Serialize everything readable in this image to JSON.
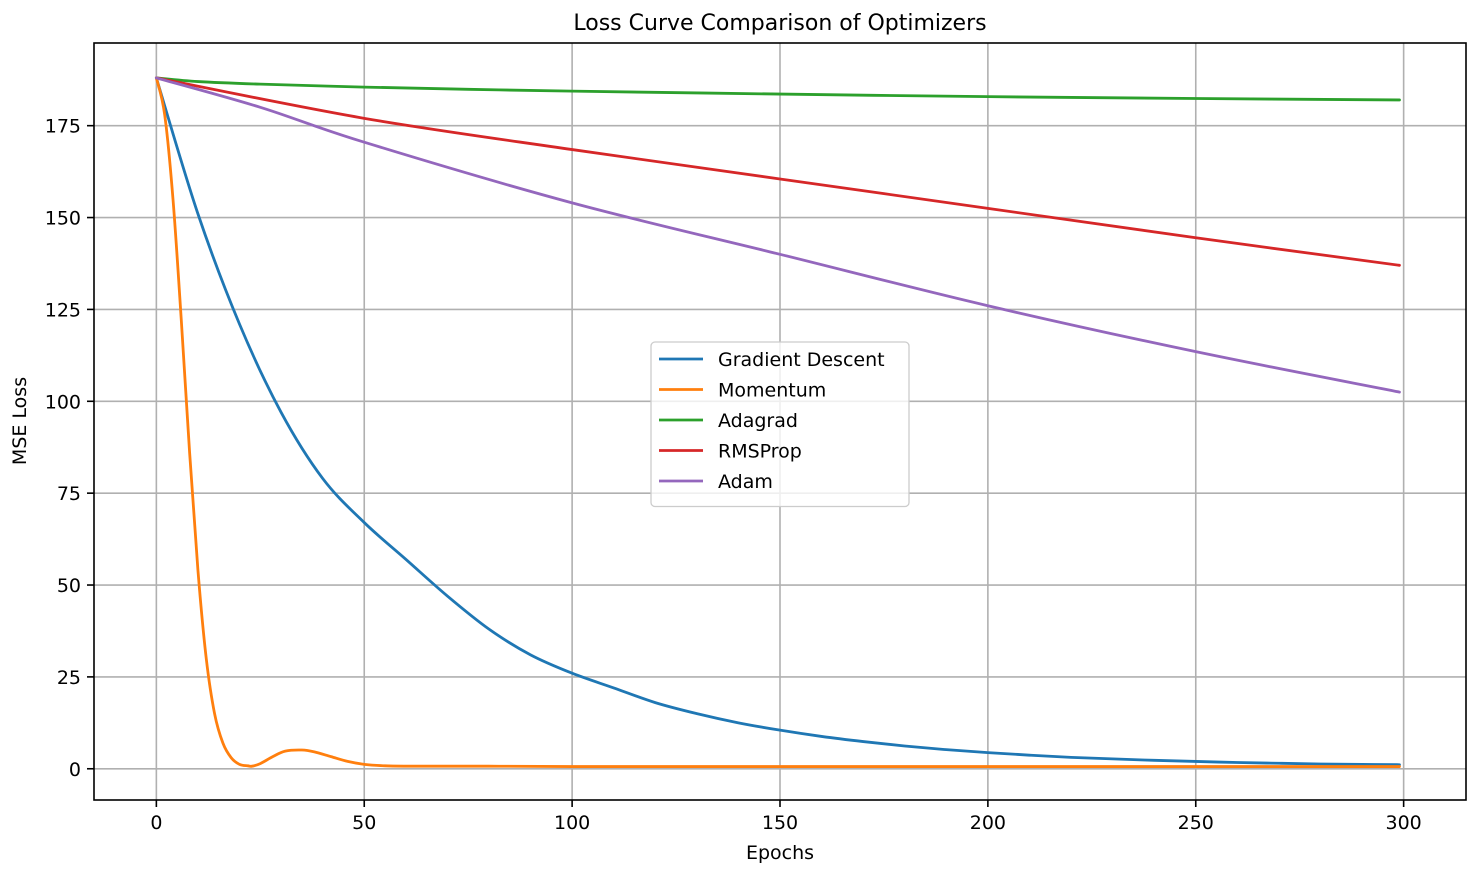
{
  "chart_data": {
    "type": "line",
    "title": "Loss Curve Comparison of Optimizers",
    "xlabel": "Epochs",
    "ylabel": "MSE Loss",
    "xlim": [
      -15,
      315
    ],
    "ylim": [
      -8.5,
      197.5
    ],
    "xticks": [
      0,
      50,
      100,
      150,
      200,
      250,
      300
    ],
    "yticks": [
      0,
      25,
      50,
      75,
      100,
      125,
      150,
      175
    ],
    "grid": true,
    "legend_position": "center",
    "series": [
      {
        "name": "Gradient Descent",
        "color": "#1f77b4",
        "x": [
          0,
          10,
          20,
          30,
          40,
          50,
          60,
          70,
          80,
          90,
          100,
          110,
          120,
          130,
          140,
          150,
          160,
          170,
          180,
          190,
          200,
          210,
          220,
          230,
          240,
          250,
          260,
          270,
          280,
          290,
          299
        ],
        "y": [
          188,
          151,
          121,
          97,
          79,
          67,
          57,
          47,
          38,
          31,
          26,
          22,
          18,
          15,
          12.5,
          10.5,
          8.8,
          7.4,
          6.2,
          5.2,
          4.4,
          3.7,
          3.1,
          2.7,
          2.3,
          2.0,
          1.7,
          1.5,
          1.3,
          1.2,
          1.1
        ]
      },
      {
        "name": "Momentum",
        "color": "#ff7f0e",
        "x": [
          0,
          2,
          4,
          6,
          8,
          10,
          12,
          14,
          16,
          18,
          20,
          22,
          23,
          25,
          28,
          31,
          35,
          38,
          42,
          46,
          50,
          55,
          60,
          70,
          80,
          100,
          150,
          200,
          250,
          299
        ],
        "y": [
          188,
          178,
          155,
          122,
          86,
          54,
          30,
          15,
          7,
          3,
          1.2,
          0.8,
          0.7,
          1.4,
          3.3,
          4.8,
          5.1,
          4.6,
          3.3,
          2.0,
          1.2,
          0.8,
          0.7,
          0.7,
          0.7,
          0.6,
          0.6,
          0.6,
          0.6,
          0.6
        ]
      },
      {
        "name": "Adagrad",
        "color": "#2ca02c",
        "x": [
          0,
          10,
          25,
          50,
          75,
          100,
          150,
          200,
          250,
          299
        ],
        "y": [
          188,
          187,
          186.3,
          185.5,
          184.9,
          184.4,
          183.6,
          182.9,
          182.4,
          182
        ]
      },
      {
        "name": "RMSProp",
        "color": "#d62728",
        "x": [
          0,
          50,
          100,
          150,
          200,
          250,
          299
        ],
        "y": [
          188,
          177,
          168.5,
          160.5,
          152.5,
          144.5,
          137
        ]
      },
      {
        "name": "Adam",
        "color": "#9467bd",
        "x": [
          0,
          25,
          50,
          100,
          150,
          200,
          250,
          299
        ],
        "y": [
          188,
          180,
          170.5,
          154,
          140,
          126,
          113.5,
          102.5
        ]
      }
    ]
  }
}
